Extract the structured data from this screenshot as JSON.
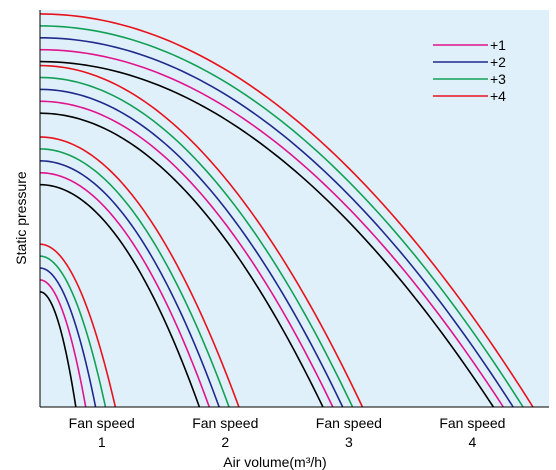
{
  "chart_data": {
    "type": "line",
    "title": "",
    "xlabel": "Air volume(m³/h)",
    "ylabel": "Static pressure",
    "xlim": [
      0,
      4.12
    ],
    "ylim": [
      0,
      1
    ],
    "grid": false,
    "legend": "top-right",
    "plot_background": "#dff0fa",
    "categories": [
      {
        "line1": "Fan speed",
        "line2": "1",
        "x": 0.5
      },
      {
        "line1": "Fan speed",
        "line2": "2",
        "x": 1.5
      },
      {
        "line1": "Fan speed",
        "line2": "3",
        "x": 2.5
      },
      {
        "line1": "Fan speed",
        "line2": "4",
        "x": 3.5
      }
    ],
    "series": [
      {
        "name": "",
        "color": "#000000"
      },
      {
        "name": "+1",
        "color": "#e0148c"
      },
      {
        "name": "+2",
        "color": "#1f2a8c"
      },
      {
        "name": "+3",
        "color": "#13a055"
      },
      {
        "name": "+4",
        "color": "#e8121c"
      }
    ],
    "curves": [
      {
        "speed": 1,
        "series": 0,
        "max_pressure": 0.29,
        "max_airflow": 0.29
      },
      {
        "speed": 1,
        "series": 1,
        "max_pressure": 0.32,
        "max_airflow": 0.37
      },
      {
        "speed": 1,
        "series": 2,
        "max_pressure": 0.35,
        "max_airflow": 0.45
      },
      {
        "speed": 1,
        "series": 3,
        "max_pressure": 0.38,
        "max_airflow": 0.53
      },
      {
        "speed": 1,
        "series": 4,
        "max_pressure": 0.41,
        "max_airflow": 0.61
      },
      {
        "speed": 2,
        "series": 0,
        "max_pressure": 0.56,
        "max_airflow": 1.29
      },
      {
        "speed": 2,
        "series": 1,
        "max_pressure": 0.59,
        "max_airflow": 1.37
      },
      {
        "speed": 2,
        "series": 2,
        "max_pressure": 0.62,
        "max_airflow": 1.45
      },
      {
        "speed": 2,
        "series": 3,
        "max_pressure": 0.65,
        "max_airflow": 1.53
      },
      {
        "speed": 2,
        "series": 4,
        "max_pressure": 0.68,
        "max_airflow": 1.61
      },
      {
        "speed": 3,
        "series": 0,
        "max_pressure": 0.74,
        "max_airflow": 2.29
      },
      {
        "speed": 3,
        "series": 1,
        "max_pressure": 0.77,
        "max_airflow": 2.37
      },
      {
        "speed": 3,
        "series": 2,
        "max_pressure": 0.8,
        "max_airflow": 2.45
      },
      {
        "speed": 3,
        "series": 3,
        "max_pressure": 0.83,
        "max_airflow": 2.53
      },
      {
        "speed": 3,
        "series": 4,
        "max_pressure": 0.86,
        "max_airflow": 2.61
      },
      {
        "speed": 4,
        "series": 0,
        "max_pressure": 0.87,
        "max_airflow": 3.67
      },
      {
        "speed": 4,
        "series": 1,
        "max_pressure": 0.9,
        "max_airflow": 3.75
      },
      {
        "speed": 4,
        "series": 2,
        "max_pressure": 0.93,
        "max_airflow": 3.83
      },
      {
        "speed": 4,
        "series": 3,
        "max_pressure": 0.96,
        "max_airflow": 3.91
      },
      {
        "speed": 4,
        "series": 4,
        "max_pressure": 0.99,
        "max_airflow": 3.99
      }
    ]
  }
}
